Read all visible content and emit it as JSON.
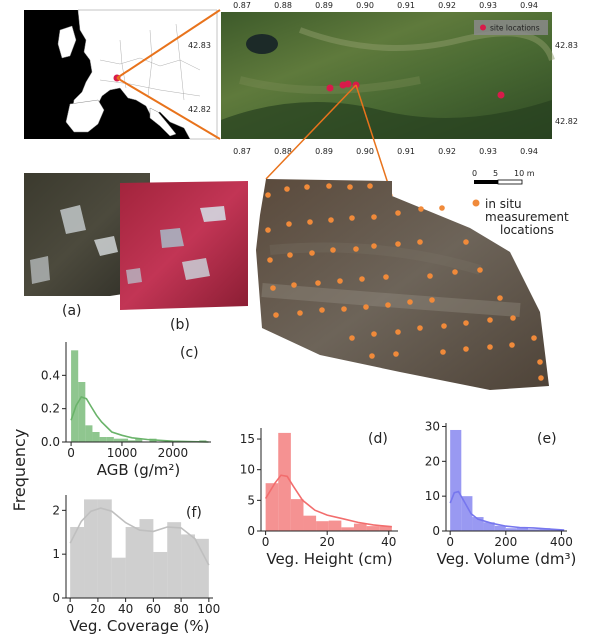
{
  "colors": {
    "connector": "#e8731c",
    "site": "#d81b4a",
    "insitu": "#f08a3a",
    "agb": "#6ab36a",
    "height": "#f26d6d",
    "volume": "#7777ee",
    "coverage": "#bfbfbf"
  },
  "map": {
    "top_ticks": [
      "0.87",
      "0.88",
      "0.89",
      "0.90",
      "0.91",
      "0.92",
      "0.93",
      "0.94"
    ],
    "bottom_ticks": [
      "0.87",
      "0.88",
      "0.89",
      "0.90",
      "0.91",
      "0.92",
      "0.93",
      "0.94"
    ],
    "right_ticks": [
      "42.83",
      "42.82"
    ],
    "left_ticks": [
      "42.83",
      "42.82"
    ],
    "legend_label": "site locations"
  },
  "ortho": {
    "scale_labels": [
      "0",
      "5",
      "10 m"
    ],
    "legend_lines": [
      "in situ",
      "measurement",
      "locations"
    ]
  },
  "panels": {
    "a": "(a)",
    "b": "(b)",
    "c": "(c)",
    "d": "(d)",
    "e": "(e)",
    "f": "(f)"
  },
  "shared_ylabel": "Frequency",
  "chart_data": [
    {
      "type": "bar",
      "panel": "c",
      "xlabel": "AGB (g/m²)",
      "bin_edges": [
        0,
        140,
        280,
        420,
        560,
        700,
        840,
        980,
        1120,
        1260,
        1400,
        1540,
        1680,
        1820,
        1960,
        2100,
        2240,
        2380,
        2520,
        2660
      ],
      "values": [
        0.55,
        0.36,
        0.1,
        0.06,
        0.03,
        0.03,
        0.02,
        0.02,
        0.01,
        0.02,
        0.0,
        0.02,
        0.0,
        0.0,
        0.0,
        0.0,
        0.0,
        0.0,
        0.01
      ],
      "kde": [
        [
          0,
          0.13
        ],
        [
          100,
          0.22
        ],
        [
          200,
          0.27
        ],
        [
          300,
          0.26
        ],
        [
          400,
          0.21
        ],
        [
          500,
          0.16
        ],
        [
          600,
          0.12
        ],
        [
          700,
          0.09
        ],
        [
          800,
          0.06
        ],
        [
          1000,
          0.04
        ],
        [
          1200,
          0.025
        ],
        [
          1500,
          0.015
        ],
        [
          2000,
          0.005
        ],
        [
          2700,
          0.0
        ]
      ],
      "xlim": [
        -100,
        2750
      ],
      "ylim": [
        0,
        0.6
      ],
      "xticks": [
        0,
        1000,
        2000
      ],
      "yticks": [
        0.0,
        0.2,
        0.4
      ]
    },
    {
      "type": "bar",
      "panel": "d",
      "xlabel": "Veg. Height (cm)",
      "bin_edges": [
        0,
        4.1,
        8.2,
        12.3,
        16.4,
        20.5,
        24.6,
        28.7,
        32.8,
        36.9,
        41
      ],
      "values": [
        7.8,
        16.0,
        5.2,
        2.5,
        1.6,
        1.7,
        0.6,
        1.2,
        0.8,
        0.8
      ],
      "kde": [
        [
          0,
          5.3
        ],
        [
          3,
          7.8
        ],
        [
          5,
          9.1
        ],
        [
          7,
          8.9
        ],
        [
          9,
          7.3
        ],
        [
          12,
          5.0
        ],
        [
          16,
          3.4
        ],
        [
          20,
          2.6
        ],
        [
          25,
          2.0
        ],
        [
          30,
          1.4
        ],
        [
          35,
          1.0
        ],
        [
          41,
          0.7
        ]
      ],
      "xlim": [
        -1.5,
        43
      ],
      "ylim": [
        0,
        16.8
      ],
      "xticks": [
        0,
        20,
        40
      ],
      "yticks": [
        0.0,
        5.0,
        10.0,
        15.0
      ]
    },
    {
      "type": "bar",
      "panel": "e",
      "xlabel": "Veg. Volume (dm³)",
      "bin_edges": [
        0,
        40,
        80,
        120,
        160,
        200,
        240,
        280,
        320,
        360,
        400
      ],
      "values": [
        29.0,
        10.0,
        4.0,
        2.5,
        1.5,
        0.8,
        1.0,
        0.5,
        0.8,
        0.5
      ],
      "kde": [
        [
          0,
          8.0
        ],
        [
          15,
          11.0
        ],
        [
          30,
          11.3
        ],
        [
          50,
          8.5
        ],
        [
          75,
          5.0
        ],
        [
          100,
          3.4
        ],
        [
          150,
          2.2
        ],
        [
          200,
          1.4
        ],
        [
          250,
          1.0
        ],
        [
          300,
          0.9
        ],
        [
          350,
          0.6
        ],
        [
          410,
          0.3
        ]
      ],
      "xlim": [
        -15,
        420
      ],
      "ylim": [
        0,
        31
      ],
      "xticks": [
        0,
        200,
        400
      ],
      "yticks": [
        0,
        10,
        20,
        30
      ]
    },
    {
      "type": "bar",
      "panel": "f",
      "xlabel": "Veg. Coverage (%)",
      "bin_edges": [
        0,
        10,
        20,
        30,
        40,
        50,
        60,
        70,
        80,
        90,
        100
      ],
      "values": [
        1.62,
        2.25,
        2.25,
        0.92,
        1.62,
        1.8,
        1.05,
        1.73,
        1.45,
        1.35
      ],
      "kde": [
        [
          0,
          1.25
        ],
        [
          8,
          1.75
        ],
        [
          15,
          1.98
        ],
        [
          22,
          2.05
        ],
        [
          30,
          1.98
        ],
        [
          40,
          1.72
        ],
        [
          50,
          1.55
        ],
        [
          60,
          1.52
        ],
        [
          70,
          1.62
        ],
        [
          80,
          1.6
        ],
        [
          90,
          1.35
        ],
        [
          100,
          0.75
        ]
      ],
      "xlim": [
        -3,
        103
      ],
      "ylim": [
        0,
        2.35
      ],
      "xticks": [
        0,
        20,
        40,
        60,
        80,
        100
      ],
      "yticks": [
        0.0,
        1.0,
        2.0
      ]
    }
  ]
}
